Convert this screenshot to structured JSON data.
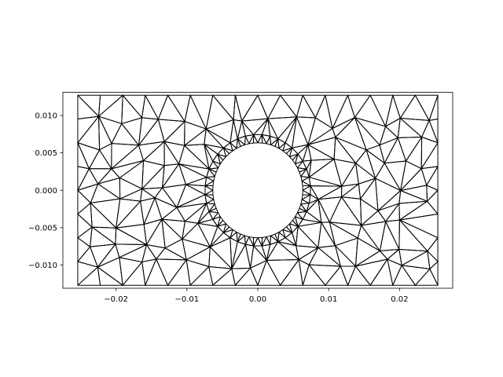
{
  "chart_data": {
    "type": "mesh",
    "title": "",
    "xlabel": "",
    "ylabel": "",
    "xlim": [
      -0.0275,
      0.0275
    ],
    "ylim": [
      -0.0131,
      0.0131
    ],
    "domain": {
      "x": [
        -0.0254,
        0.0254
      ],
      "y": [
        -0.0127,
        0.0127
      ]
    },
    "hole": {
      "center": [
        0.0,
        0.0
      ],
      "radius": 0.00635
    },
    "grid": false,
    "legend": "none",
    "line_color": "#000000",
    "x_ticks": [
      {
        "value": -0.02,
        "label": "−0.02"
      },
      {
        "value": -0.01,
        "label": "−0.01"
      },
      {
        "value": 0.0,
        "label": "0.00"
      },
      {
        "value": 0.01,
        "label": "0.01"
      },
      {
        "value": 0.02,
        "label": "0.02"
      }
    ],
    "y_ticks": [
      {
        "value": 0.01,
        "label": "0.010"
      },
      {
        "value": 0.005,
        "label": "0.005"
      },
      {
        "value": 0.0,
        "label": "0.000"
      },
      {
        "value": -0.005,
        "label": "−0.005"
      },
      {
        "value": -0.01,
        "label": "−0.010"
      }
    ]
  }
}
